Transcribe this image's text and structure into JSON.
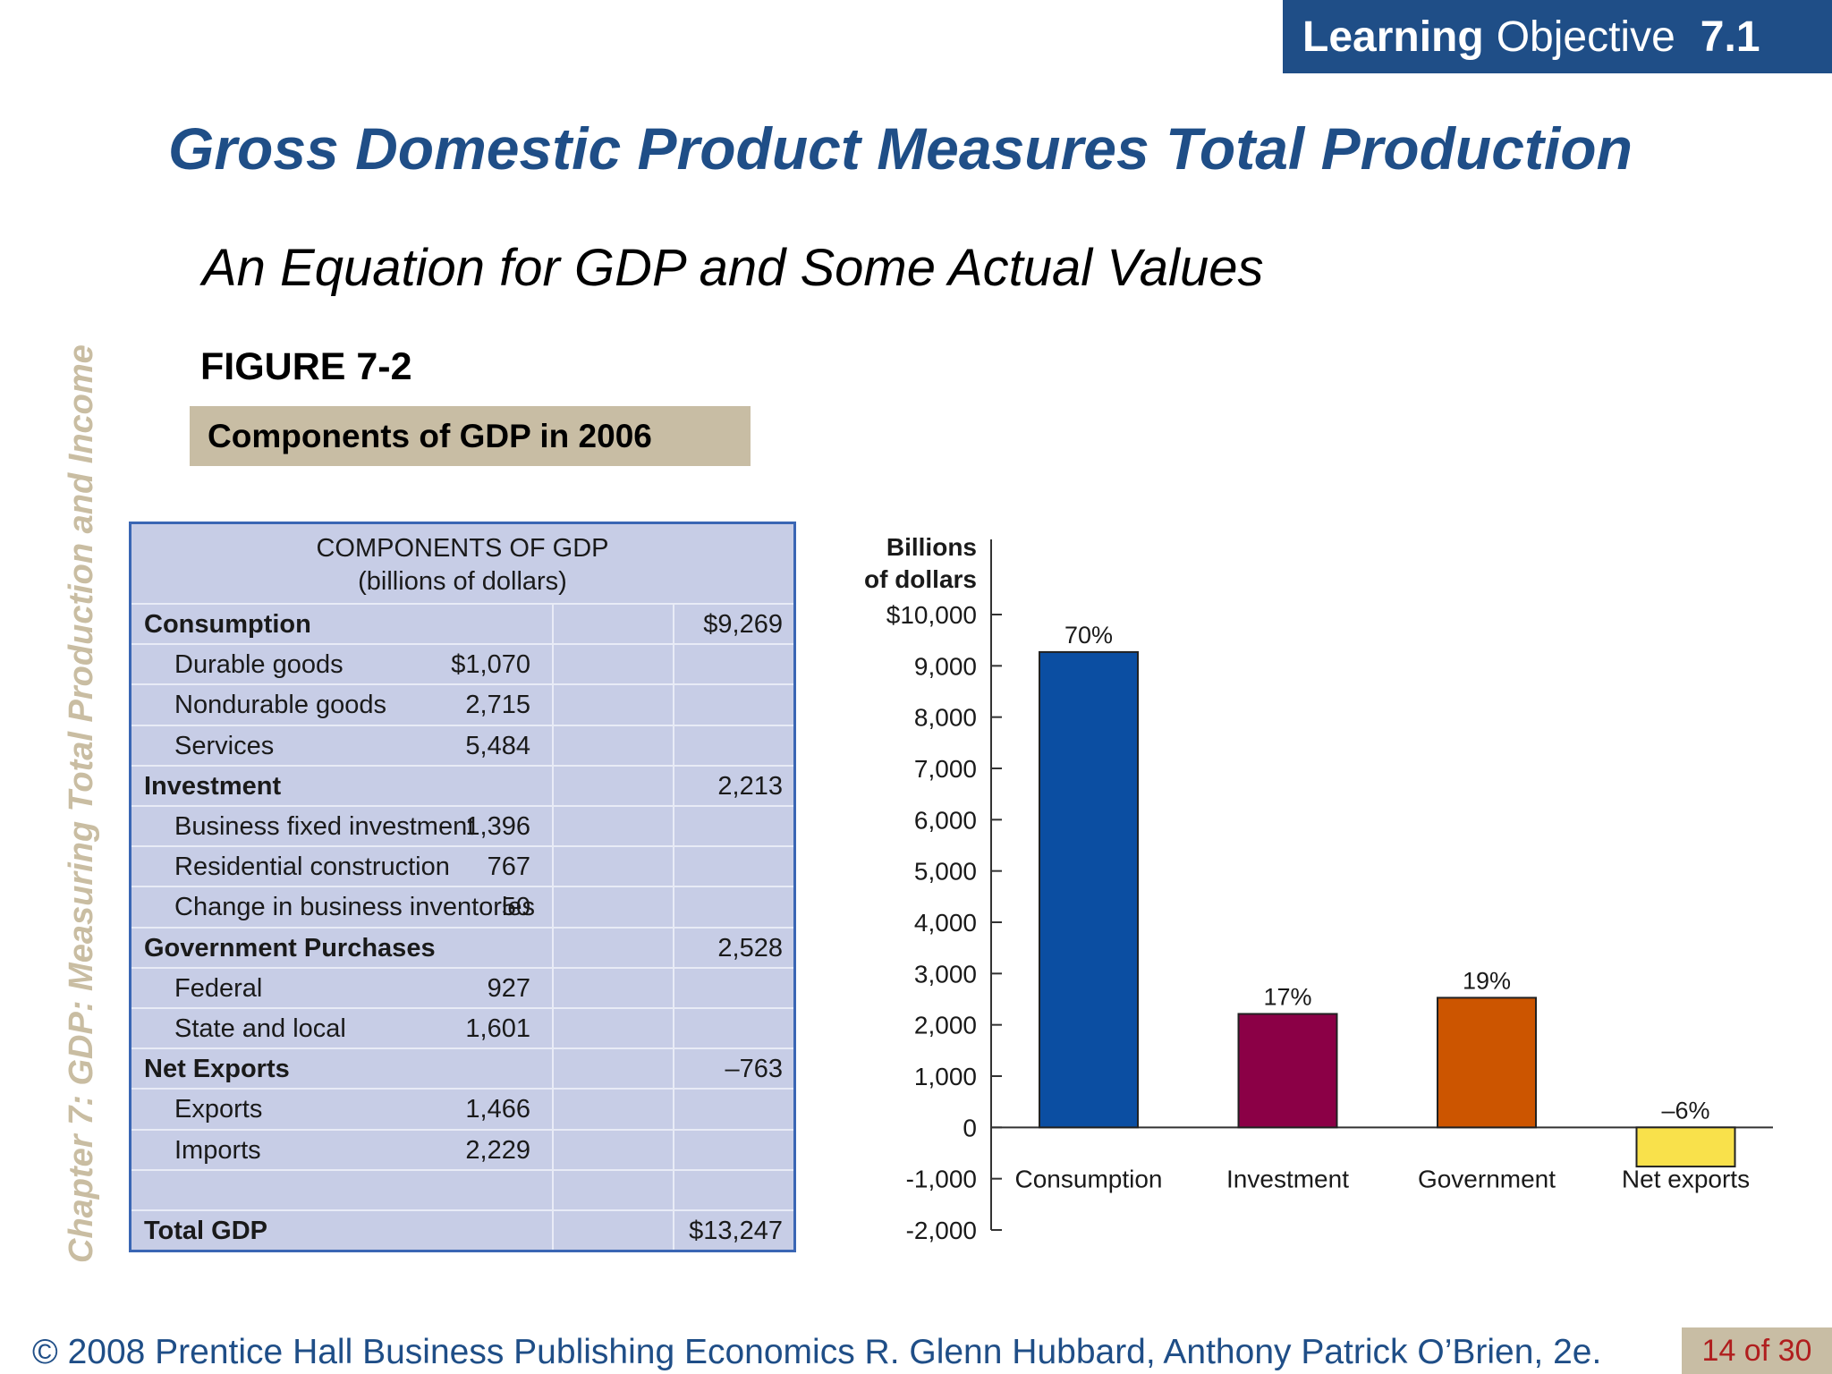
{
  "badge": {
    "learning": "Learning",
    "objective": "Objective",
    "number": "7.1"
  },
  "title": "Gross Domestic Product Measures Total Production",
  "subtitle": "An Equation for GDP and Some Actual Values",
  "side_text": "Chapter 7:  GDP:  Measuring Total Production and Income",
  "figure": {
    "label": "FIGURE 7-2",
    "caption": "Components of GDP in 2006"
  },
  "table": {
    "header_line1": "COMPONENTS OF GDP",
    "header_line2": "(billions of dollars)",
    "rows": [
      {
        "label": "Consumption",
        "amount": "",
        "total": "$9,269"
      },
      {
        "label": "Durable goods",
        "amount": "$1,070",
        "total": ""
      },
      {
        "label": "Nondurable goods",
        "amount": "2,715",
        "total": ""
      },
      {
        "label": "Services",
        "amount": "5,484",
        "total": ""
      },
      {
        "label": "Investment",
        "amount": "",
        "total": "2,213"
      },
      {
        "label": "Business fixed investment",
        "amount": "1,396",
        "total": ""
      },
      {
        "label": "Residential construction",
        "amount": "767",
        "total": ""
      },
      {
        "label": "Change in business inventories",
        "amount": "50",
        "total": ""
      },
      {
        "label": "Government Purchases",
        "amount": "",
        "total": "2,528"
      },
      {
        "label": "Federal",
        "amount": "927",
        "total": ""
      },
      {
        "label": "State and local",
        "amount": "1,601",
        "total": ""
      },
      {
        "label": "Net Exports",
        "amount": "",
        "total": "–763"
      },
      {
        "label": "Exports",
        "amount": "1,466",
        "total": ""
      },
      {
        "label": "Imports",
        "amount": "2,229",
        "total": ""
      },
      {
        "label": "",
        "amount": "",
        "total": ""
      },
      {
        "label": "Total GDP",
        "amount": "",
        "total": "$13,247"
      }
    ]
  },
  "chart_data": {
    "type": "bar",
    "ylabel_line1": "Billions",
    "ylabel_line2": "of dollars",
    "ylim": [
      -2000,
      10000
    ],
    "yticks": [
      -2000,
      -1000,
      0,
      1000,
      2000,
      3000,
      4000,
      5000,
      6000,
      7000,
      8000,
      9000,
      10000
    ],
    "ytick_labels": [
      "-2,000",
      "-1,000",
      "0",
      "1,000",
      "2,000",
      "3,000",
      "4,000",
      "5,000",
      "6,000",
      "7,000",
      "8,000",
      "9,000",
      "$10,000"
    ],
    "categories": [
      "Consumption",
      "Investment",
      "Government",
      "Net exports"
    ],
    "values": [
      9269,
      2213,
      2528,
      -763
    ],
    "data_labels": [
      "70%",
      "17%",
      "19%",
      "–6%"
    ],
    "colors": [
      "#0b4ea2",
      "#8b0046",
      "#cc5500",
      "#f9e14b"
    ],
    "grid": false,
    "legend": "none"
  },
  "footer": {
    "text": "© 2008 Prentice Hall Business Publishing   Economics  R. Glenn Hubbard, Anthony Patrick O’Brien, 2e.",
    "page": "14 of 30"
  }
}
